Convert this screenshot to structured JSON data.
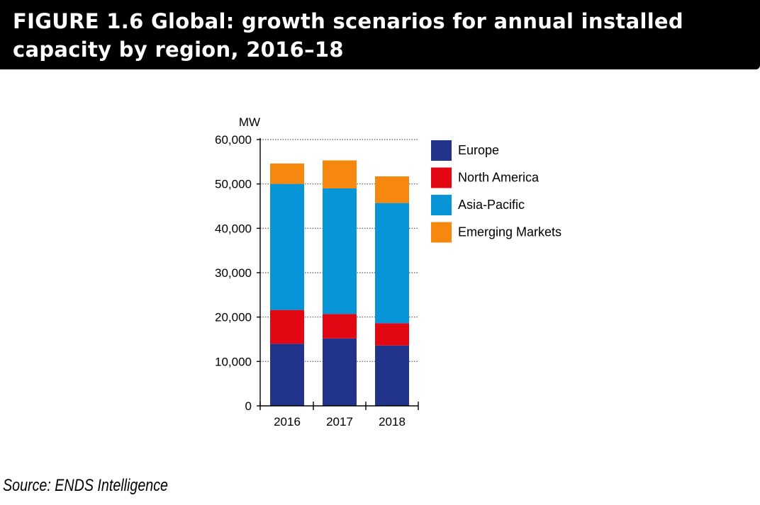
{
  "header": {
    "title": "FIGURE 1.6 Global: growth scenarios for annual installed capacity by region, 2016–18"
  },
  "source": "Source: ENDS Intelligence",
  "colors": {
    "Europe": "#21338b",
    "North America": "#e30613",
    "Asia-Pacific": "#0795d7",
    "Emerging Markets": "#f7880f"
  },
  "chart_data": {
    "type": "bar",
    "stacked": true,
    "ylabel": "MW",
    "ylim": [
      0,
      60000
    ],
    "yticks": [
      0,
      10000,
      20000,
      30000,
      40000,
      50000,
      60000
    ],
    "ytick_labels": [
      "0",
      "10,000",
      "20,000",
      "30,000",
      "40,000",
      "50,000",
      "60,000"
    ],
    "categories": [
      "2016",
      "2017",
      "2018"
    ],
    "grid": "dotted horizontal",
    "legend_position": "right",
    "series": [
      {
        "name": "Europe",
        "values": [
          14000,
          15200,
          13600
        ]
      },
      {
        "name": "North America",
        "values": [
          7600,
          5500,
          5000
        ]
      },
      {
        "name": "Asia-Pacific",
        "values": [
          28400,
          28300,
          27100
        ]
      },
      {
        "name": "Emerging Markets",
        "values": [
          4600,
          6300,
          6000
        ]
      }
    ]
  }
}
